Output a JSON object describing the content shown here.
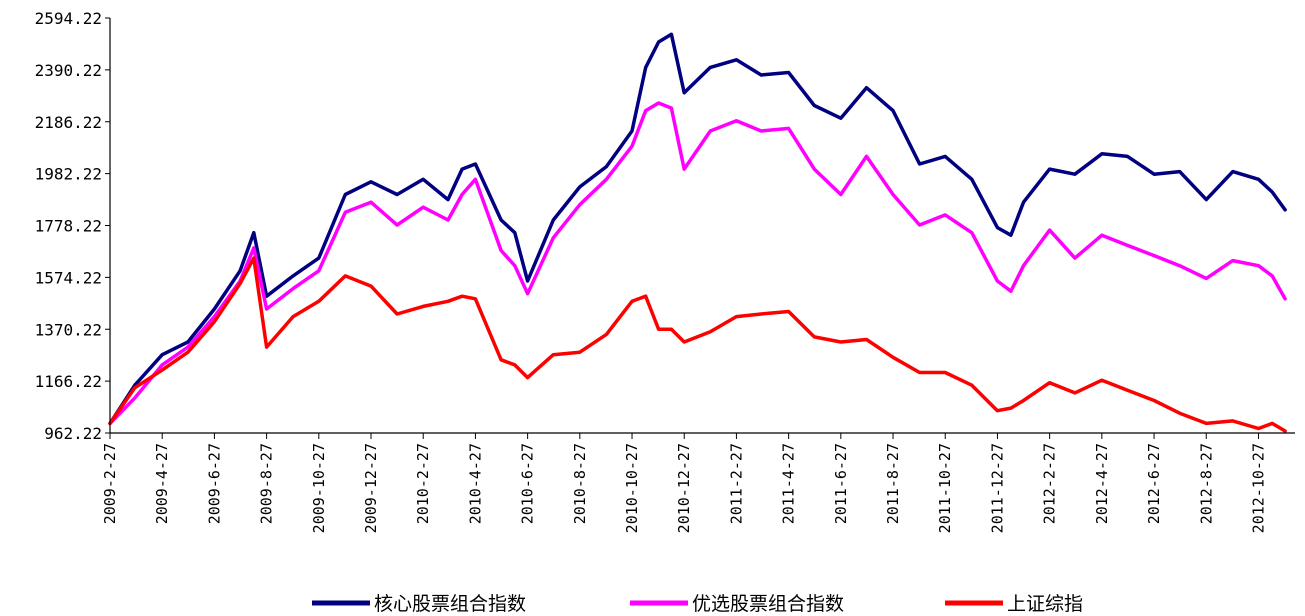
{
  "chart_data": {
    "type": "line",
    "title": "",
    "xlabel": "",
    "ylabel": "",
    "ylim": [
      962.22,
      2594.22
    ],
    "yticks": [
      "962.22",
      "1166.22",
      "1370.22",
      "1574.22",
      "1778.22",
      "1982.22",
      "2186.22",
      "2390.22",
      "2594.22"
    ],
    "xticks": [
      "2009-2-27",
      "2009-4-27",
      "2009-6-27",
      "2009-8-27",
      "2009-10-27",
      "2009-12-27",
      "2010-2-27",
      "2010-4-27",
      "2010-6-27",
      "2010-8-27",
      "2010-10-27",
      "2010-12-27",
      "2011-2-27",
      "2011-4-27",
      "2011-6-27",
      "2011-8-27",
      "2011-10-27",
      "2011-12-27",
      "2012-2-27",
      "2012-4-27",
      "2012-6-27",
      "2012-8-27",
      "2012-10-27"
    ],
    "grid": false,
    "legend_position": "bottom",
    "x": [
      "2009-2-27",
      "2009-3-27",
      "2009-4-27",
      "2009-5-27",
      "2009-6-27",
      "2009-7-27",
      "2009-8-12",
      "2009-8-27",
      "2009-9-27",
      "2009-10-27",
      "2009-11-27",
      "2009-12-27",
      "2010-1-27",
      "2010-2-27",
      "2010-3-27",
      "2010-4-12",
      "2010-4-27",
      "2010-5-27",
      "2010-6-12",
      "2010-6-27",
      "2010-7-27",
      "2010-8-27",
      "2010-9-27",
      "2010-10-27",
      "2010-11-12",
      "2010-11-27",
      "2010-12-12",
      "2010-12-27",
      "2011-1-27",
      "2011-2-27",
      "2011-3-27",
      "2011-4-27",
      "2011-5-27",
      "2011-6-27",
      "2011-7-27",
      "2011-8-27",
      "2011-9-27",
      "2011-10-27",
      "2011-11-27",
      "2011-12-27",
      "2012-1-12",
      "2012-1-27",
      "2012-2-27",
      "2012-3-27",
      "2012-4-27",
      "2012-5-27",
      "2012-6-27",
      "2012-7-27",
      "2012-8-27",
      "2012-9-27",
      "2012-10-27",
      "2012-11-12",
      "2012-11-27"
    ],
    "series": [
      {
        "name": "核心股票组合指数",
        "color": "#000080",
        "values": [
          1000,
          1150,
          1270,
          1320,
          1450,
          1600,
          1750,
          1500,
          1580,
          1650,
          1900,
          1950,
          1900,
          1960,
          1880,
          2000,
          2020,
          1800,
          1750,
          1560,
          1800,
          1930,
          2010,
          2150,
          2400,
          2500,
          2530,
          2300,
          2400,
          2430,
          2370,
          2380,
          2250,
          2200,
          2320,
          2230,
          2020,
          2050,
          1960,
          1770,
          1740,
          1870,
          2000,
          1980,
          2060,
          2050,
          1980,
          1990,
          1880,
          1990,
          1960,
          1910,
          1840
        ]
      },
      {
        "name": "优选股票组合指数",
        "color": "#FF00FF",
        "values": [
          1000,
          1100,
          1230,
          1300,
          1420,
          1560,
          1690,
          1450,
          1530,
          1600,
          1830,
          1870,
          1780,
          1850,
          1800,
          1900,
          1960,
          1680,
          1620,
          1510,
          1730,
          1860,
          1960,
          2090,
          2230,
          2260,
          2240,
          2000,
          2150,
          2190,
          2150,
          2160,
          2000,
          1900,
          2050,
          1900,
          1780,
          1820,
          1750,
          1560,
          1520,
          1620,
          1760,
          1650,
          1740,
          1700,
          1660,
          1620,
          1570,
          1640,
          1620,
          1580,
          1490
        ]
      },
      {
        "name": "上证综指",
        "color": "#FF0000",
        "values": [
          1000,
          1140,
          1210,
          1280,
          1400,
          1550,
          1650,
          1300,
          1420,
          1480,
          1580,
          1540,
          1430,
          1460,
          1480,
          1500,
          1490,
          1250,
          1230,
          1180,
          1270,
          1280,
          1350,
          1480,
          1500,
          1370,
          1370,
          1320,
          1360,
          1420,
          1430,
          1440,
          1340,
          1320,
          1330,
          1260,
          1200,
          1200,
          1150,
          1050,
          1060,
          1090,
          1160,
          1120,
          1170,
          1130,
          1090,
          1040,
          1000,
          1010,
          980,
          1000,
          970
        ]
      }
    ]
  }
}
